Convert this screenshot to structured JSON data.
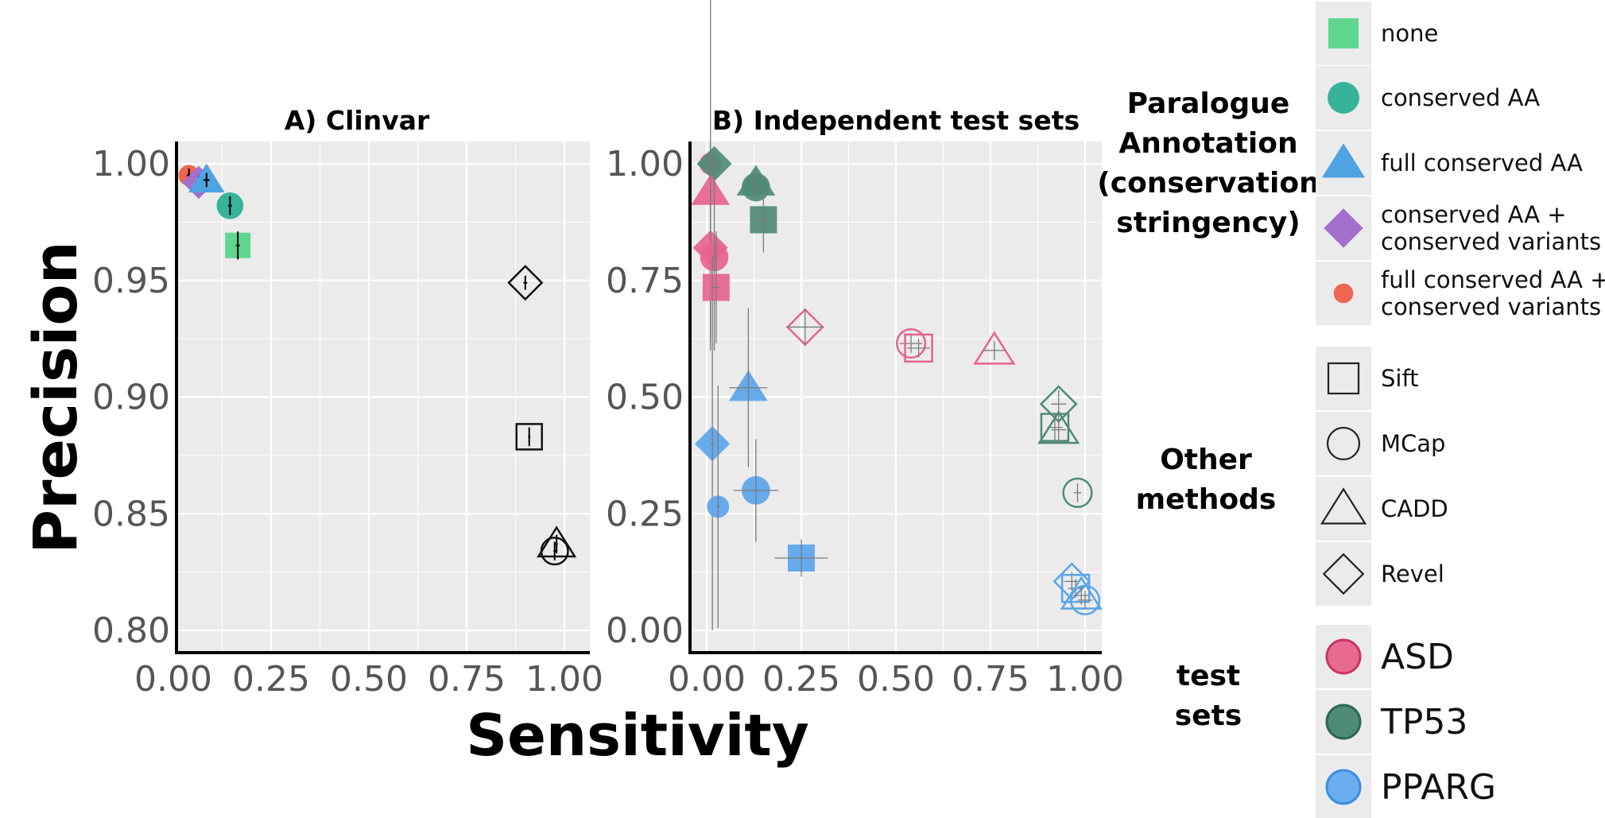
{
  "chart_data": [
    {
      "type": "scatter",
      "title": "A) Clinvar",
      "xlim": [
        0,
        1
      ],
      "ylim": [
        0.8,
        1.0
      ],
      "x_ticks": [
        "0.00",
        "0.25",
        "0.50",
        "0.75",
        "1.00"
      ],
      "y_ticks": [
        "0.80",
        "0.85",
        "0.90",
        "0.95",
        "1.00"
      ],
      "grid": true,
      "points": [
        {
          "method": "full conserved AA + conserved variants",
          "set": "Clinvar",
          "x": 0.04,
          "y": 0.995,
          "xerr": 0.005,
          "yerr": 0.003
        },
        {
          "method": "conserved AA + conserved variants",
          "set": "Clinvar",
          "x": 0.065,
          "y": 0.992,
          "xerr": 0.008,
          "yerr": 0.003
        },
        {
          "method": "full conserved AA",
          "set": "Clinvar",
          "x": 0.085,
          "y": 0.993,
          "xerr": 0.008,
          "yerr": 0.003
        },
        {
          "method": "conserved AA",
          "set": "Clinvar",
          "x": 0.145,
          "y": 0.982,
          "xerr": 0.005,
          "yerr": 0.004
        },
        {
          "method": "none",
          "set": "Clinvar",
          "x": 0.165,
          "y": 0.965,
          "xerr": 0.005,
          "yerr": 0.006
        },
        {
          "method": "Revel",
          "set": "Clinvar",
          "x": 0.9,
          "y": 0.949,
          "xerr": 0.005,
          "yerr": 0.003
        },
        {
          "method": "Sift",
          "set": "Clinvar",
          "x": 0.91,
          "y": 0.883,
          "xerr": 0.003,
          "yerr": 0.004
        },
        {
          "method": "CADD",
          "set": "Clinvar",
          "x": 0.98,
          "y": 0.837,
          "xerr": 0.003,
          "yerr": 0.004
        },
        {
          "method": "MCap",
          "set": "Clinvar",
          "x": 0.975,
          "y": 0.834,
          "xerr": 0.003,
          "yerr": 0.004
        }
      ]
    },
    {
      "type": "scatter",
      "title": "B) Independent test sets",
      "xlim": [
        0,
        1
      ],
      "ylim": [
        0,
        1
      ],
      "x_ticks": [
        "0.00",
        "0.25",
        "0.50",
        "0.75",
        "1.00"
      ],
      "y_ticks": [
        "0.00",
        "0.25",
        "0.50",
        "0.75",
        "1.00"
      ],
      "grid": true,
      "points": [
        {
          "method": "full conserved AA + conserved variants",
          "set": "ASD",
          "x": 0.01,
          "y": 1.0,
          "xerr": 0.005,
          "yerr": 0.4
        },
        {
          "method": "conserved AA + conserved variants",
          "set": "TP53",
          "x": 0.02,
          "y": 1.0,
          "xerr": 0.005,
          "yerr": 0.005
        },
        {
          "method": "full conserved AA",
          "set": "ASD",
          "x": 0.01,
          "y": 0.94,
          "xerr": 0.005,
          "yerr": 0.1
        },
        {
          "method": "full conserved AA",
          "set": "TP53",
          "x": 0.13,
          "y": 0.96,
          "xerr": 0.01,
          "yerr": 0.03
        },
        {
          "method": "conserved AA",
          "set": "TP53",
          "x": 0.13,
          "y": 0.95,
          "xerr": 0.01,
          "yerr": 0.03
        },
        {
          "method": "none",
          "set": "TP53",
          "x": 0.15,
          "y": 0.88,
          "xerr": 0.015,
          "yerr": 0.07
        },
        {
          "method": "conserved AA + conserved variants",
          "set": "ASD",
          "x": 0.01,
          "y": 0.82,
          "xerr": 0.005,
          "yerr": 0.2
        },
        {
          "method": "conserved AA",
          "set": "ASD",
          "x": 0.02,
          "y": 0.8,
          "xerr": 0.005,
          "yerr": 0.2
        },
        {
          "method": "none",
          "set": "ASD",
          "x": 0.025,
          "y": 0.735,
          "xerr": 0.008,
          "yerr": 0.12
        },
        {
          "method": "Revel",
          "set": "ASD",
          "x": 0.26,
          "y": 0.65,
          "xerr": 0.05,
          "yerr": 0.04
        },
        {
          "method": "MCap",
          "set": "ASD",
          "x": 0.54,
          "y": 0.615,
          "xerr": 0.03,
          "yerr": 0.02
        },
        {
          "method": "Sift",
          "set": "ASD",
          "x": 0.56,
          "y": 0.605,
          "xerr": 0.03,
          "yerr": 0.02
        },
        {
          "method": "CADD",
          "set": "ASD",
          "x": 0.76,
          "y": 0.6,
          "xerr": 0.03,
          "yerr": 0.02
        },
        {
          "method": "full conserved AA",
          "set": "PPARG",
          "x": 0.11,
          "y": 0.52,
          "xerr": 0.05,
          "yerr": 0.17
        },
        {
          "method": "Revel",
          "set": "TP53",
          "x": 0.93,
          "y": 0.485,
          "xerr": 0.02,
          "yerr": 0.03
        },
        {
          "method": "Sift",
          "set": "TP53",
          "x": 0.92,
          "y": 0.435,
          "xerr": 0.02,
          "yerr": 0.03
        },
        {
          "method": "CADD",
          "set": "TP53",
          "x": 0.93,
          "y": 0.43,
          "xerr": 0.02,
          "yerr": 0.03
        },
        {
          "method": "conserved AA + conserved variants",
          "set": "PPARG",
          "x": 0.015,
          "y": 0.4,
          "xerr": 0.005,
          "yerr": 0.4
        },
        {
          "method": "MCap",
          "set": "TP53",
          "x": 0.98,
          "y": 0.295,
          "xerr": 0.01,
          "yerr": 0.02
        },
        {
          "method": "conserved AA",
          "set": "PPARG",
          "x": 0.13,
          "y": 0.3,
          "xerr": 0.06,
          "yerr": 0.11
        },
        {
          "method": "full conserved AA + conserved variants",
          "set": "PPARG",
          "x": 0.03,
          "y": 0.265,
          "xerr": 0.005,
          "yerr": 0.26
        },
        {
          "method": "none",
          "set": "PPARG",
          "x": 0.25,
          "y": 0.155,
          "xerr": 0.07,
          "yerr": 0.04
        },
        {
          "method": "Revel",
          "set": "PPARG",
          "x": 0.965,
          "y": 0.105,
          "xerr": 0.02,
          "yerr": 0.02
        },
        {
          "method": "Sift",
          "set": "PPARG",
          "x": 0.975,
          "y": 0.09,
          "xerr": 0.02,
          "yerr": 0.02
        },
        {
          "method": "CADD",
          "set": "PPARG",
          "x": 0.99,
          "y": 0.075,
          "xerr": 0.02,
          "yerr": 0.02
        },
        {
          "method": "MCap",
          "set": "PPARG",
          "x": 1.0,
          "y": 0.065,
          "xerr": 0.02,
          "yerr": 0.02
        }
      ]
    }
  ],
  "axes": {
    "ylabel": "Precision",
    "xlabel": "Sensitivity"
  },
  "legend": {
    "paralogue_title_lines": [
      "Paralogue",
      "Annotation",
      "(conservation",
      "stringency)"
    ],
    "paralogue_items": [
      {
        "label_lines": [
          "none"
        ],
        "shape": "square",
        "color": "#5fd690"
      },
      {
        "label_lines": [
          "conserved AA"
        ],
        "shape": "circle",
        "color": "#37b39a"
      },
      {
        "label_lines": [
          "full conserved AA"
        ],
        "shape": "triangle",
        "color": "#4fa3e2"
      },
      {
        "label_lines": [
          "conserved AA +",
          "conserved variants"
        ],
        "shape": "diamond",
        "color": "#a36fcd"
      },
      {
        "label_lines": [
          "full conserved AA +",
          "conserved variants"
        ],
        "shape": "smallcircle",
        "color": "#ee6650"
      }
    ],
    "methods_title_lines": [
      "Other",
      "methods"
    ],
    "methods_items": [
      {
        "label": "Sift",
        "shape": "square"
      },
      {
        "label": "MCap",
        "shape": "circle"
      },
      {
        "label": "CADD",
        "shape": "triangle"
      },
      {
        "label": "Revel",
        "shape": "diamond"
      }
    ],
    "sets_title_lines": [
      "test",
      "sets"
    ],
    "sets_items": [
      {
        "label": "ASD",
        "color": "#e86a8f",
        "stroke": "#cc3366"
      },
      {
        "label": "TP53",
        "color": "#4f8a78",
        "stroke": "#2e6655"
      },
      {
        "label": "PPARG",
        "color": "#6aaef0",
        "stroke": "#3b8ee0"
      }
    ]
  },
  "colors": {
    "none": "#5fd690",
    "conserved AA": "#37b39a",
    "full conserved AA": "#4fa3e2",
    "conserved AA + conserved variants": "#a36fcd",
    "full conserved AA + conserved variants": "#ee6650",
    "ASD": "#e8638e",
    "TP53": "#4e8a78",
    "PPARG": "#5aa4ea",
    "Clinvar_outline": "#111111",
    "panel_bg": "#ebebeb"
  }
}
